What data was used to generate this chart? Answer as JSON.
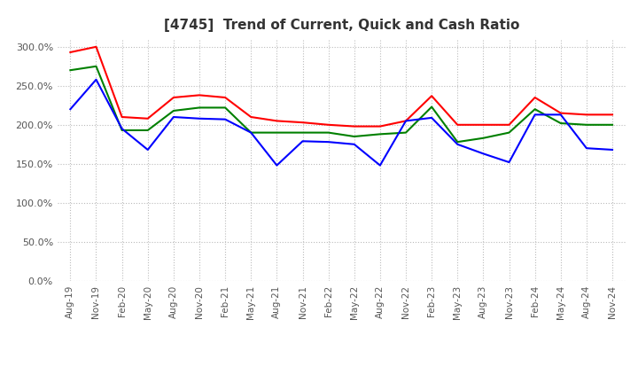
{
  "title": "[4745]  Trend of Current, Quick and Cash Ratio",
  "x_labels": [
    "Aug-19",
    "Nov-19",
    "Feb-20",
    "May-20",
    "Aug-20",
    "Nov-20",
    "Feb-21",
    "May-21",
    "Aug-21",
    "Nov-21",
    "Feb-22",
    "May-22",
    "Aug-22",
    "Nov-22",
    "Feb-23",
    "May-23",
    "Aug-23",
    "Nov-23",
    "Feb-24",
    "May-24",
    "Aug-24",
    "Nov-24"
  ],
  "current_ratio": [
    293,
    300,
    210,
    208,
    235,
    238,
    235,
    210,
    205,
    203,
    200,
    198,
    198,
    205,
    237,
    200,
    200,
    200,
    235,
    215,
    213,
    213
  ],
  "quick_ratio": [
    270,
    275,
    193,
    193,
    218,
    222,
    222,
    190,
    190,
    190,
    190,
    185,
    188,
    190,
    223,
    178,
    183,
    190,
    220,
    202,
    200,
    200
  ],
  "cash_ratio": [
    220,
    258,
    195,
    168,
    210,
    208,
    207,
    190,
    148,
    179,
    178,
    175,
    148,
    205,
    209,
    175,
    163,
    152,
    213,
    213,
    170,
    168
  ],
  "current_color": "#ff0000",
  "quick_color": "#008000",
  "cash_color": "#0000ff",
  "ylim": [
    0,
    310
  ],
  "yticks": [
    0,
    50,
    100,
    150,
    200,
    250,
    300
  ],
  "background_color": "#ffffff",
  "grid_color": "#bbbbbb"
}
